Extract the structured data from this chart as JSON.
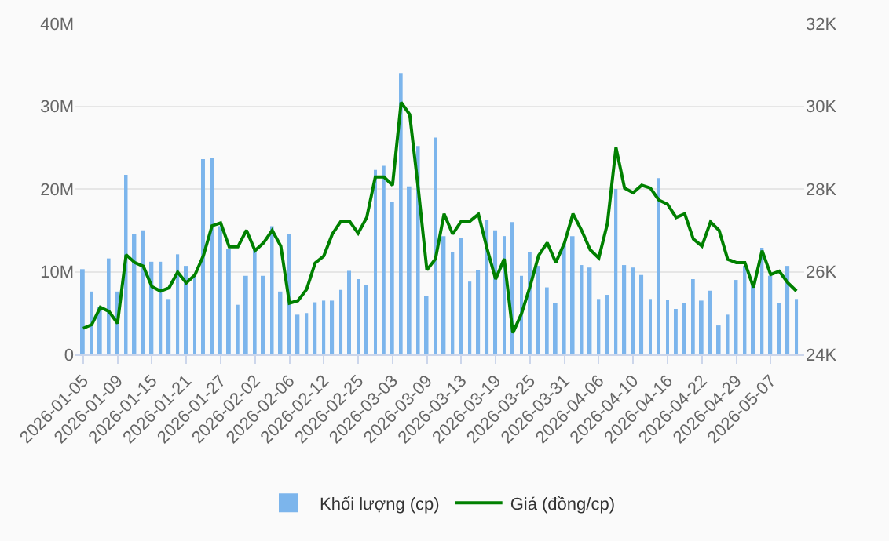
{
  "chart_data": {
    "type": "bar",
    "categories": [
      "2026-01-05",
      null,
      null,
      null,
      "2026-01-09",
      null,
      null,
      null,
      "2026-01-15",
      null,
      null,
      null,
      "2026-01-21",
      null,
      null,
      null,
      "2026-01-27",
      null,
      null,
      null,
      "2026-02-02",
      null,
      null,
      null,
      "2026-02-06",
      null,
      null,
      null,
      "2026-02-12",
      null,
      null,
      null,
      "2026-02-25",
      null,
      null,
      null,
      "2026-03-03",
      null,
      null,
      null,
      "2026-03-09",
      null,
      null,
      null,
      "2026-03-13",
      null,
      null,
      null,
      "2026-03-19",
      null,
      null,
      null,
      "2026-03-25",
      null,
      null,
      null,
      "2026-03-31",
      null,
      null,
      null,
      "2026-04-06",
      null,
      null,
      null,
      "2026-04-10",
      null,
      null,
      null,
      "2026-04-16",
      null,
      null,
      null,
      "2026-04-22",
      null,
      null,
      null,
      "2026-04-29",
      null,
      null,
      null,
      "2026-05-07",
      null,
      null,
      null
    ],
    "series": [
      {
        "name": "Khối lượng (cp)",
        "axis": "y",
        "color": "#7cb5ec",
        "values": [
          10.3,
          7.6,
          5.7,
          11.6,
          7.6,
          21.7,
          14.5,
          15.0,
          11.2,
          11.2,
          6.7,
          12.1,
          10.7,
          9.5,
          23.6,
          23.7,
          15.5,
          12.8,
          6.0,
          9.5,
          12.6,
          9.5,
          15.5,
          7.6,
          14.5,
          4.8,
          5.0,
          6.3,
          6.5,
          6.5,
          7.8,
          10.1,
          9.1,
          8.4,
          22.3,
          22.8,
          18.4,
          34.0,
          20.3,
          25.2,
          7.1,
          26.2,
          14.3,
          12.4,
          14.1,
          8.8,
          10.2,
          16.2,
          15.0,
          14.3,
          16.0,
          9.5,
          12.4,
          10.7,
          8.1,
          6.2,
          13.4,
          14.3,
          10.8,
          10.5,
          6.7,
          7.2,
          20.0,
          10.8,
          10.5,
          9.6,
          6.7,
          21.3,
          6.6,
          5.5,
          6.2,
          9.1,
          6.5,
          7.7,
          3.5,
          4.8,
          9.0,
          10.7,
          8.5,
          12.9,
          9.5,
          6.2,
          10.7,
          6.7
        ]
      },
      {
        "name": "Giá (đồng/cp)",
        "type": "line",
        "axis": "y2",
        "color": "#008000",
        "values": [
          24.63,
          24.72,
          25.14,
          25.04,
          24.75,
          26.41,
          26.22,
          26.13,
          25.64,
          25.53,
          25.61,
          25.99,
          25.73,
          25.92,
          26.39,
          27.11,
          27.18,
          26.6,
          26.6,
          27.0,
          26.51,
          26.7,
          27.0,
          26.62,
          25.24,
          25.3,
          25.57,
          26.21,
          26.38,
          26.91,
          27.22,
          27.22,
          26.93,
          27.31,
          28.29,
          28.29,
          28.09,
          30.09,
          29.8,
          28.0,
          26.04,
          26.31,
          27.4,
          26.91,
          27.22,
          27.22,
          27.39,
          26.56,
          25.82,
          26.31,
          24.52,
          24.98,
          25.64,
          26.39,
          26.7,
          26.22,
          26.69,
          27.4,
          27.0,
          26.53,
          26.33,
          27.16,
          29.0,
          28.02,
          27.91,
          28.09,
          28.02,
          27.73,
          27.63,
          27.31,
          27.4,
          26.79,
          26.62,
          27.2,
          27.0,
          26.3,
          26.22,
          26.22,
          25.62,
          26.51,
          25.93,
          26.01,
          25.73,
          25.53
        ]
      }
    ],
    "ylim": [
      0,
      40
    ],
    "yticks": [
      0,
      {
        "value": 10,
        "label": "10M"
      },
      {
        "value": 20,
        "label": "20M"
      },
      {
        "value": 30,
        "label": "30M"
      },
      {
        "value": 40,
        "label": "40M"
      }
    ],
    "y2lim": [
      24,
      32
    ],
    "y2ticks": [
      {
        "value": 24,
        "label": "24K"
      },
      {
        "value": 26,
        "label": "26K"
      },
      {
        "value": 28,
        "label": "28K"
      },
      {
        "value": 30,
        "label": "30K"
      },
      {
        "value": 32,
        "label": "32K"
      }
    ],
    "grid": "y",
    "legend": "bottom"
  }
}
